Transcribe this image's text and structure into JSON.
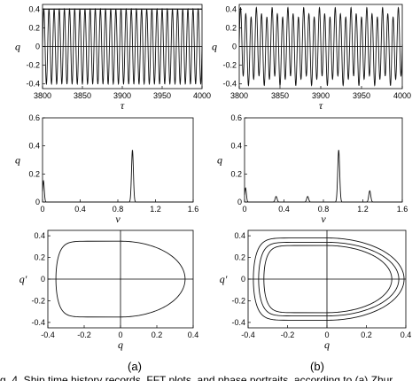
{
  "figure": {
    "caption": "g. 4. Ship time history records, FFT plots, and phase portraits, according to (a) Zhur",
    "panel_labels": [
      "(a)",
      "(b)"
    ]
  },
  "chart_data": [
    {
      "id": "a-time",
      "type": "line",
      "xlabel": "τ",
      "ylabel": "q",
      "xlim": [
        3800,
        4000
      ],
      "ylim": [
        -0.45,
        0.45
      ],
      "xticks": [
        "3800",
        "3850",
        "3900",
        "3950",
        "4000"
      ],
      "yticks": [
        "0.4",
        "0.2",
        "0",
        "-0.2",
        "-0.4"
      ],
      "signal": {
        "amplitude": 0.4,
        "cycles_in_window": 31,
        "second_amplitude": 0
      },
      "grid": false
    },
    {
      "id": "b-time",
      "type": "line",
      "xlabel": "τ",
      "ylabel": "q",
      "xlim": [
        3800,
        4000
      ],
      "ylim": [
        -0.45,
        0.45
      ],
      "xticks": [
        "3800",
        "3850",
        "3900",
        "3950",
        "4000"
      ],
      "yticks": [
        "0.4",
        "0.2",
        "0",
        "-0.2",
        "-0.4"
      ],
      "signal": {
        "amplitude": 0.36,
        "cycles_in_window": 31,
        "second_amplitude": 0.06
      },
      "grid": false
    },
    {
      "id": "a-fft",
      "type": "line",
      "xlabel": "ν",
      "ylabel": "q",
      "xlim": [
        0,
        1.6
      ],
      "ylim": [
        0,
        0.6
      ],
      "xticks": [
        "0",
        "0.4",
        "0.8",
        "1.2",
        "1.6"
      ],
      "yticks": [
        "0.6",
        "0.4",
        "0.2",
        "0"
      ],
      "peaks": [
        {
          "x": 0.01,
          "y": 0.15
        },
        {
          "x": 0.955,
          "y": 0.37
        }
      ],
      "grid": false
    },
    {
      "id": "b-fft",
      "type": "line",
      "xlabel": "ν",
      "ylabel": "q",
      "xlim": [
        0,
        1.6
      ],
      "ylim": [
        0,
        0.6
      ],
      "xticks": [
        "0",
        "0.4",
        "0.8",
        "1.2",
        "1.6"
      ],
      "yticks": [
        "0.6",
        "0.4",
        "0.2",
        "0"
      ],
      "peaks": [
        {
          "x": 0.01,
          "y": 0.1
        },
        {
          "x": 0.32,
          "y": 0.04
        },
        {
          "x": 0.64,
          "y": 0.04
        },
        {
          "x": 0.955,
          "y": 0.37
        },
        {
          "x": 1.27,
          "y": 0.08
        }
      ],
      "grid": false
    },
    {
      "id": "a-phase",
      "type": "line",
      "xlabel": "q",
      "ylabel": "q′",
      "xlim": [
        -0.45,
        0.45
      ],
      "ylim": [
        -0.45,
        0.45
      ],
      "xticks": [
        "-0.4",
        "-0.2",
        "0",
        "0.2",
        "0.4"
      ],
      "yticks": [
        "0.4",
        "0.2",
        "0",
        "-0.2",
        "-0.4"
      ],
      "orbits": [
        {
          "xmin": -0.4,
          "xmax": 0.4,
          "ymax": 0.35
        }
      ],
      "grid": false
    },
    {
      "id": "b-phase",
      "type": "line",
      "xlabel": "q",
      "ylabel": "q′",
      "xlim": [
        -0.45,
        0.45
      ],
      "ylim": [
        -0.45,
        0.45
      ],
      "xticks": [
        "-0.4",
        "-0.2",
        "0",
        "0.2",
        "0.4"
      ],
      "yticks": [
        "0.4",
        "0.2",
        "0",
        "-0.2",
        "-0.4"
      ],
      "orbits": [
        {
          "xmin": -0.42,
          "xmax": 0.44,
          "ymax": 0.38
        },
        {
          "xmin": -0.36,
          "xmax": 0.37,
          "ymax": 0.31
        },
        {
          "xmin": -0.39,
          "xmax": 0.41,
          "ymax": 0.34
        }
      ],
      "grid": false
    }
  ]
}
